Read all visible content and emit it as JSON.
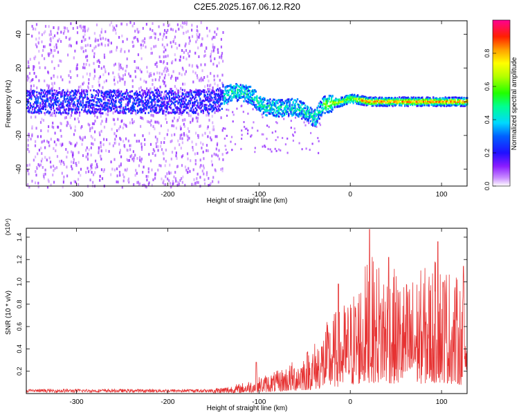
{
  "figure_title": "C2E5.2025.167.06.12.R20",
  "chart_data": [
    {
      "type": "heatmap",
      "title": "C2E5.2025.167.06.12.R20",
      "xlabel": "Height of straight line (km)",
      "ylabel": "Frequency (Hz)",
      "xlim": [
        -355,
        128
      ],
      "ylim": [
        -50,
        48
      ],
      "x_ticks": [
        -300,
        -200,
        -100,
        0,
        100
      ],
      "x_tick_labels": [
        "-300",
        "-200",
        "-100",
        "0",
        "100"
      ],
      "y_ticks": [
        -40,
        -20,
        0,
        20,
        40
      ],
      "y_tick_labels": [
        "-40",
        "-20",
        "0",
        "20",
        "40"
      ],
      "colorbar": {
        "label": "Normalized spectral amplitude",
        "range": [
          0,
          1
        ],
        "ticks": [
          0.0,
          0.2,
          0.4,
          0.6,
          0.8
        ],
        "tick_labels": [
          "0.0",
          "0.2",
          "0.4",
          "0.6",
          "0.8"
        ],
        "colormap": "rainbow"
      },
      "ridge": {
        "description_points_x": [
          -355,
          -200,
          -150,
          -130,
          -110,
          -95,
          -80,
          -60,
          -45,
          -40,
          -30,
          -10,
          0,
          20,
          128
        ],
        "center_freq": [
          0,
          0,
          0,
          6,
          4,
          -3,
          -4,
          -3,
          -8,
          -10,
          -2,
          0,
          2,
          0,
          0
        ]
      }
    },
    {
      "type": "line",
      "xlabel": "Height of straight line (km)",
      "ylabel": "SNR (10 * v/v)",
      "y_multiplier_label": "(x10⁴)",
      "xlim": [
        -355,
        128
      ],
      "ylim": [
        0,
        1.48
      ],
      "x_ticks": [
        -300,
        -200,
        -100,
        0,
        100
      ],
      "x_tick_labels": [
        "-300",
        "-200",
        "-100",
        "0",
        "100"
      ],
      "y_ticks": [
        0.2,
        0.4,
        0.6,
        0.8,
        1.0,
        1.2,
        1.4
      ],
      "y_tick_labels": [
        "0.2",
        "0.4",
        "0.6",
        "0.8",
        "1.0",
        "1.2",
        "1.4"
      ],
      "series": [
        {
          "color": "#e63232",
          "envelope_x": [
            -355,
            -200,
            -160,
            -140,
            -120,
            -100,
            -80,
            -60,
            -40,
            -20,
            0,
            20,
            40,
            60,
            80,
            100,
            128
          ],
          "envelope_y": [
            0.03,
            0.03,
            0.05,
            0.06,
            0.09,
            0.15,
            0.2,
            0.3,
            0.45,
            0.7,
            0.85,
            1.2,
            1.15,
            1.0,
            1.1,
            1.2,
            0.9
          ],
          "peaks": [
            {
              "x": -103,
              "y": 0.28
            },
            {
              "x": -13,
              "y": 0.98
            },
            {
              "x": 21,
              "y": 1.47
            },
            {
              "x": 42,
              "y": 1.22
            },
            {
              "x": 96,
              "y": 1.36
            },
            {
              "x": 124,
              "y": 1.14
            }
          ]
        }
      ]
    }
  ]
}
